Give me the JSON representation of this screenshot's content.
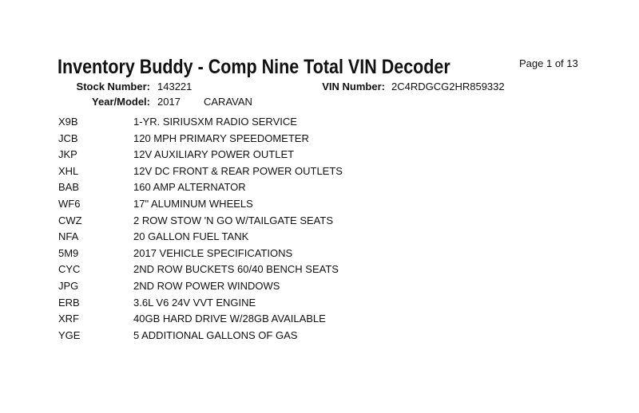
{
  "title": "Inventory Buddy - Comp Nine Total VIN Decoder",
  "page_indicator": "Page 1 of 13",
  "header": {
    "stock_number_label": "Stock Number:",
    "stock_number": "143221",
    "vin_label": "VIN Number:",
    "vin": "2C4RDGCG2HR859332",
    "year_model_label": "Year/Model:",
    "year": "2017",
    "model": "CARAVAN"
  },
  "options": [
    {
      "code": "X9B",
      "description": "1-YR. SIRIUSXM RADIO SERVICE"
    },
    {
      "code": "JCB",
      "description": "120 MPH PRIMARY SPEEDOMETER"
    },
    {
      "code": "JKP",
      "description": "12V AUXILIARY POWER OUTLET"
    },
    {
      "code": "XHL",
      "description": "12V DC FRONT & REAR POWER OUTLETS"
    },
    {
      "code": "BAB",
      "description": "160 AMP ALTERNATOR"
    },
    {
      "code": "WF6",
      "description": "17\" ALUMINUM WHEELS"
    },
    {
      "code": "CWZ",
      "description": "2 ROW STOW 'N GO W/TAILGATE SEATS"
    },
    {
      "code": "NFA",
      "description": "20 GALLON FUEL TANK"
    },
    {
      "code": "5M9",
      "description": "2017 VEHICLE SPECIFICATIONS"
    },
    {
      "code": "CYC",
      "description": "2ND ROW BUCKETS 60/40 BENCH SEATS"
    },
    {
      "code": "JPG",
      "description": "2ND ROW POWER WINDOWS"
    },
    {
      "code": "ERB",
      "description": "3.6L V6 24V VVT ENGINE"
    },
    {
      "code": "XRF",
      "description": "40GB HARD DRIVE W/28GB AVAILABLE"
    },
    {
      "code": "YGE",
      "description": "5 ADDITIONAL GALLONS OF GAS"
    }
  ]
}
